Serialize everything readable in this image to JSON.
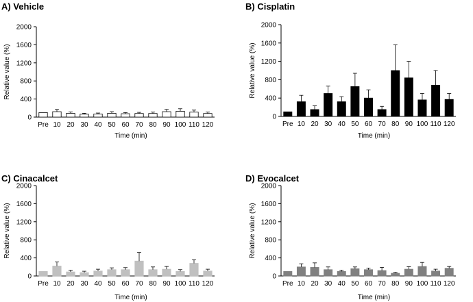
{
  "chart_data": [
    {
      "type": "bar",
      "title": "A) Vehicle",
      "xlabel": "Time (min)",
      "ylabel": "Relative value (%)",
      "ylim": [
        0,
        2000
      ],
      "yticks": [
        0,
        400,
        800,
        1200,
        1600,
        2000
      ],
      "categories": [
        "Pre",
        "10",
        "20",
        "30",
        "40",
        "50",
        "60",
        "70",
        "80",
        "90",
        "100",
        "110",
        "120"
      ],
      "values": [
        100,
        120,
        85,
        65,
        70,
        85,
        75,
        80,
        80,
        120,
        130,
        110,
        80
      ],
      "errors": [
        0,
        50,
        30,
        20,
        20,
        35,
        25,
        25,
        30,
        50,
        55,
        45,
        30
      ],
      "bar_color": "#ffffff"
    },
    {
      "type": "bar",
      "title": "B) Cisplatin",
      "xlabel": "Time (min)",
      "ylabel": "Relative value (%)",
      "ylim": [
        0,
        2000
      ],
      "yticks": [
        0,
        400,
        800,
        1200,
        1600,
        2000
      ],
      "categories": [
        "Pre",
        "10",
        "20",
        "30",
        "40",
        "50",
        "60",
        "70",
        "80",
        "90",
        "100",
        "110",
        "120"
      ],
      "values": [
        100,
        320,
        150,
        500,
        320,
        650,
        400,
        150,
        1000,
        840,
        360,
        680,
        370
      ],
      "errors": [
        0,
        140,
        80,
        160,
        110,
        290,
        180,
        70,
        560,
        360,
        140,
        320,
        130
      ],
      "bar_color": "#000000"
    },
    {
      "type": "bar",
      "title": "C) Cinacalcet",
      "xlabel": "Time (min)",
      "ylabel": "Relative value (%)",
      "ylim": [
        0,
        2000
      ],
      "yticks": [
        0,
        400,
        800,
        1200,
        1600,
        2000
      ],
      "categories": [
        "Pre",
        "10",
        "20",
        "30",
        "40",
        "50",
        "60",
        "70",
        "80",
        "90",
        "100",
        "110",
        "120"
      ],
      "values": [
        100,
        220,
        90,
        75,
        110,
        140,
        140,
        330,
        140,
        150,
        100,
        280,
        110
      ],
      "errors": [
        0,
        90,
        40,
        30,
        40,
        40,
        45,
        190,
        60,
        60,
        40,
        80,
        40
      ],
      "bar_color": "#c0c0c0"
    },
    {
      "type": "bar",
      "title": "D) Evocalcet",
      "xlabel": "Time (min)",
      "ylabel": "Relative value (%)",
      "ylim": [
        0,
        2000
      ],
      "yticks": [
        0,
        400,
        800,
        1200,
        1600,
        2000
      ],
      "categories": [
        "Pre",
        "10",
        "20",
        "30",
        "40",
        "50",
        "60",
        "70",
        "80",
        "90",
        "100",
        "110",
        "120"
      ],
      "values": [
        100,
        200,
        190,
        140,
        100,
        160,
        140,
        120,
        60,
        150,
        210,
        110,
        170
      ],
      "errors": [
        0,
        70,
        100,
        60,
        30,
        40,
        35,
        70,
        20,
        55,
        90,
        40,
        40
      ],
      "bar_color": "#808080"
    }
  ]
}
